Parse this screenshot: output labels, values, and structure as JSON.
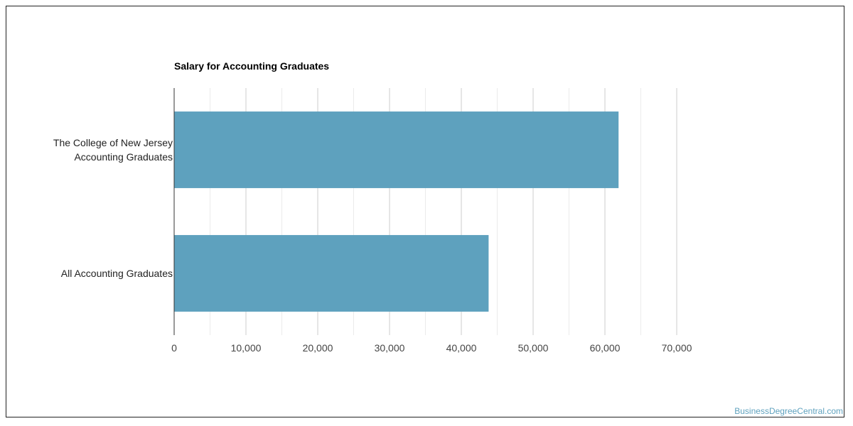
{
  "chart_data": {
    "type": "bar",
    "orientation": "horizontal",
    "title": "Salary for Accounting Graduates",
    "xlabel": "",
    "ylabel": "",
    "categories": [
      [
        "The College of New Jersey",
        "Accounting Graduates"
      ],
      [
        "All Accounting Graduates"
      ]
    ],
    "values": [
      61900,
      43800
    ],
    "xlim": [
      0,
      70000
    ],
    "x_ticks": [
      "0",
      "10,000",
      "20,000",
      "30,000",
      "40,000",
      "50,000",
      "60,000",
      "70,000"
    ],
    "grid": true,
    "legend": "none",
    "bar_color": "#5ea1be"
  },
  "watermark": "BusinessDegreeCentral.com"
}
